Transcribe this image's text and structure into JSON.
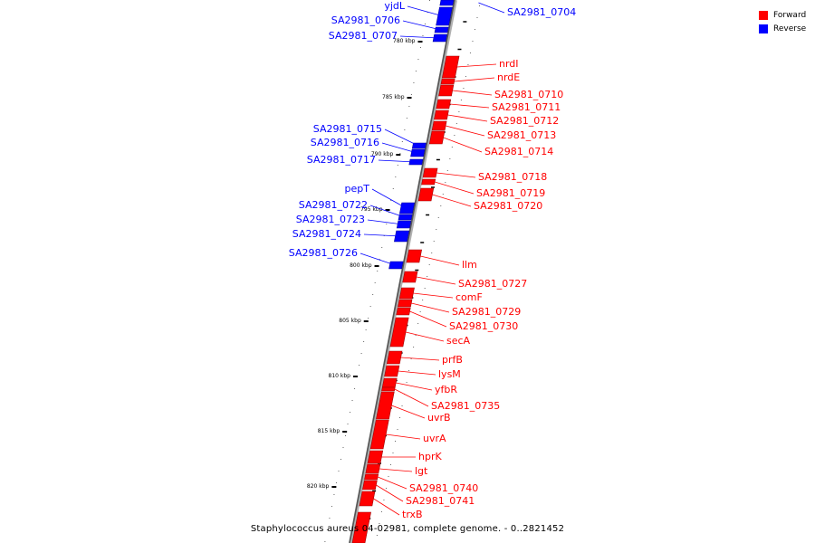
{
  "legend": {
    "forward_label": "Forward",
    "reverse_label": "Reverse",
    "forward_color": "#ff0000",
    "reverse_color": "#0000ff"
  },
  "caption": "Staphylococcus aureus 04-02981, complete genome. - 0..2821452",
  "ticks": [
    "780 kbp",
    "785 kbp",
    "790 kbp",
    "795 kbp",
    "800 kbp",
    "805 kbp",
    "810 kbp",
    "815 kbp",
    "820 kbp"
  ],
  "genes_reverse": [
    "yjdL",
    "SA2981_0704",
    "SA2981_0706",
    "SA2981_0707",
    "SA2981_0715",
    "SA2981_0716",
    "SA2981_0717",
    "pepT",
    "SA2981_0722",
    "SA2981_0723",
    "SA2981_0724",
    "SA2981_0726"
  ],
  "genes_forward": [
    "nrdI",
    "nrdE",
    "SA2981_0710",
    "SA2981_0711",
    "SA2981_0712",
    "SA2981_0713",
    "SA2981_0714",
    "SA2981_0718",
    "SA2981_0719",
    "SA2981_0720",
    "llm",
    "SA2981_0727",
    "comF",
    "SA2981_0729",
    "SA2981_0730",
    "secA",
    "prfB",
    "lysM",
    "yfbR",
    "SA2981_0735",
    "uvrB",
    "uvrA",
    "hprK",
    "lgt",
    "SA2981_0740",
    "SA2981_0741",
    "trxB"
  ]
}
